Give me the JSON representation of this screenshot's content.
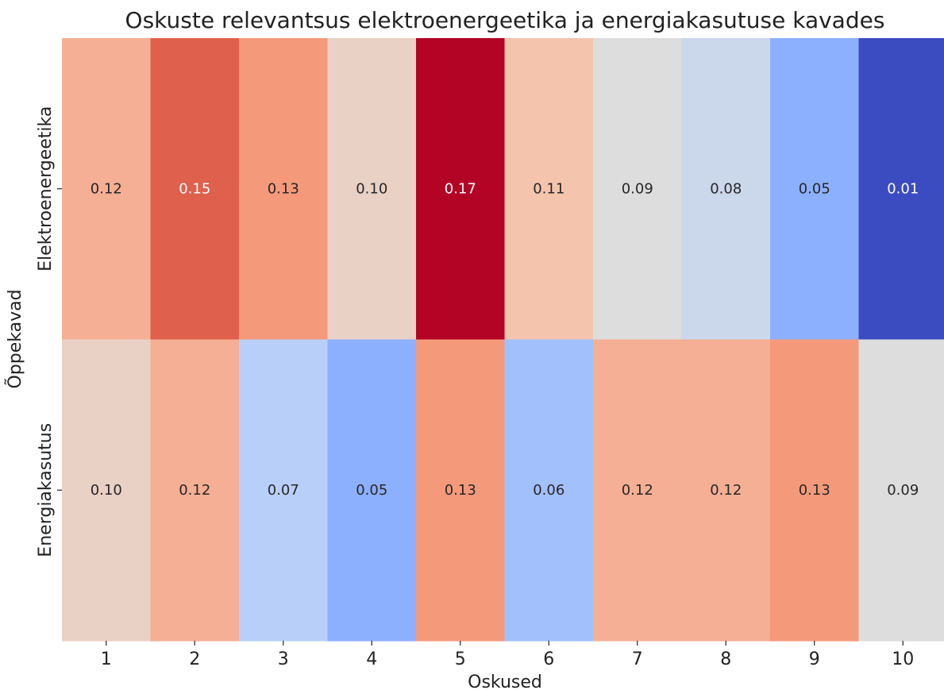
{
  "chart_data": {
    "type": "heatmap",
    "title": "Oskuste relevantsus elektroenergeetika ja energiakasutuse kavades",
    "xlabel": "Oskused",
    "ylabel": "Õppekavad",
    "x_categories": [
      "1",
      "2",
      "3",
      "4",
      "5",
      "6",
      "7",
      "8",
      "9",
      "10"
    ],
    "y_categories": [
      "Elektroenergeetika",
      "Energiakasutus"
    ],
    "values": [
      [
        0.12,
        0.15,
        0.13,
        0.1,
        0.17,
        0.11,
        0.09,
        0.08,
        0.05,
        0.01
      ],
      [
        0.1,
        0.12,
        0.07,
        0.05,
        0.13,
        0.06,
        0.12,
        0.12,
        0.13,
        0.09
      ]
    ],
    "value_labels": [
      [
        "0.12",
        "0.15",
        "0.13",
        "0.10",
        "0.17",
        "0.11",
        "0.09",
        "0.08",
        "0.05",
        "0.01"
      ],
      [
        "0.10",
        "0.12",
        "0.07",
        "0.05",
        "0.13",
        "0.06",
        "0.12",
        "0.12",
        "0.13",
        "0.09"
      ]
    ],
    "colormap": "coolwarm",
    "color_range": [
      0.01,
      0.17
    ],
    "annotations": true,
    "colorbar": false
  }
}
